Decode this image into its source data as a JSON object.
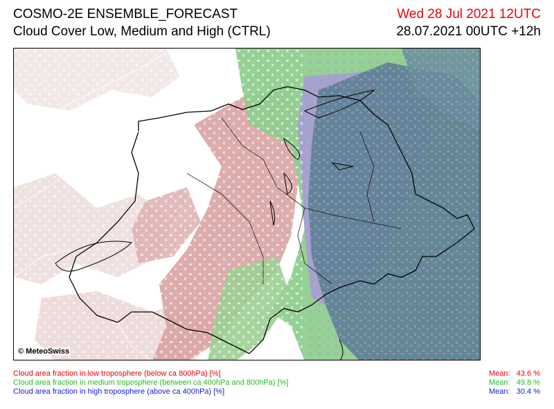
{
  "header": {
    "title": "COSMO-2E ENSEMBLE_FORECAST",
    "subtitle": "Cloud Cover Low, Medium and High (CTRL)",
    "valid_time": "Wed 28 Jul 2021 12UTC",
    "run_info": "28.07.2021 00UTC +12h"
  },
  "map": {
    "copyright": "© MeteoSwiss",
    "colors": {
      "low": "#d9a3a3",
      "medium": "#8fce8f",
      "high": "#a89bd6",
      "overlap": "#5f7f96",
      "border": "#000000"
    }
  },
  "legend": [
    {
      "label": "Cloud area fraction in low troposphere (below ca 800hPa) [%]",
      "mean_label": "Mean:",
      "mean_value": "43.6 %",
      "color": "#e8000b"
    },
    {
      "label": "Cloud area fraction in medium troposphere (between ca 400hPa and 800hPa) [%]",
      "mean_label": "Mean:",
      "mean_value": "49.8 %",
      "color": "#1fbf1f"
    },
    {
      "label": "Cloud area fraction in high troposphere (above ca 400hPa) [%]",
      "mean_label": "Mean:",
      "mean_value": "30.4 %",
      "color": "#1620d8"
    }
  ]
}
